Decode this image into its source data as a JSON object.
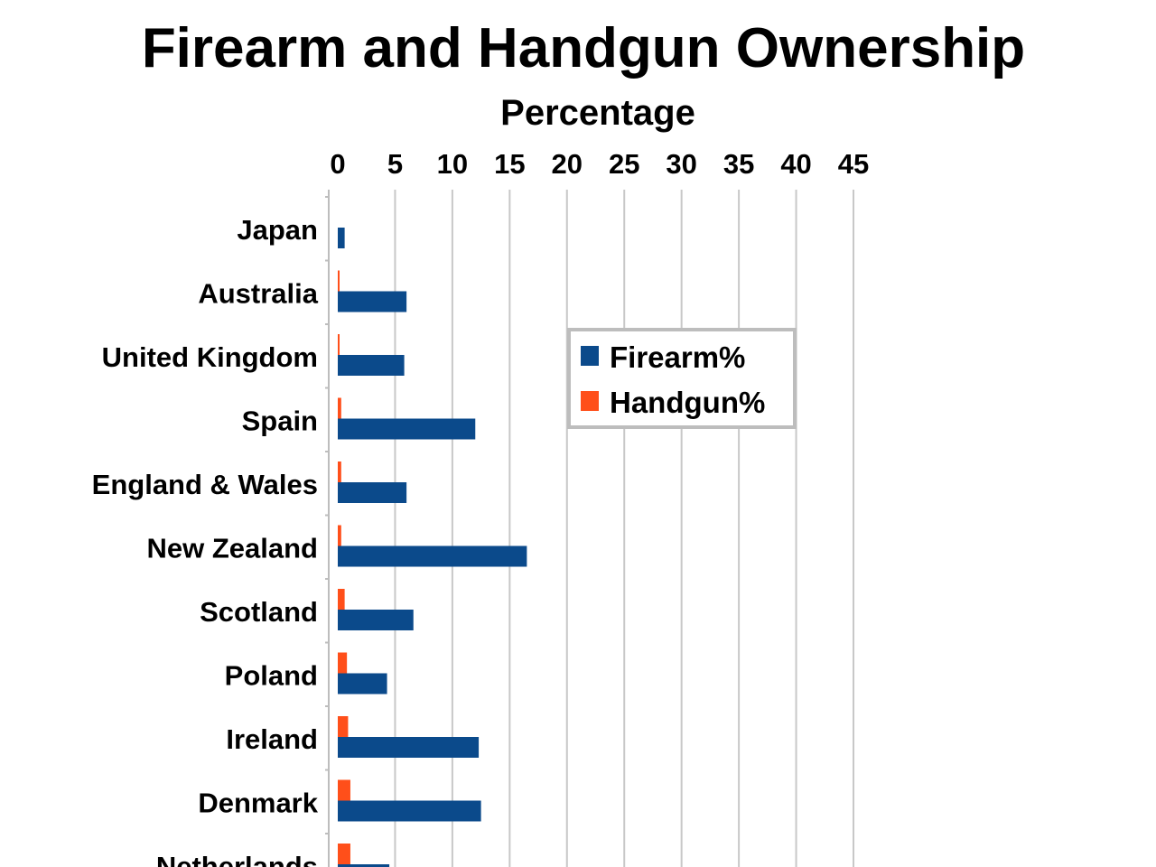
{
  "chart_data": {
    "type": "bar",
    "orientation": "horizontal",
    "title": "Firearm and Handgun Ownership",
    "xlabel": "Percentage",
    "ylabel": "",
    "xlim": [
      0,
      45
    ],
    "x_ticks": [
      0,
      5,
      10,
      15,
      20,
      25,
      30,
      35,
      40,
      45
    ],
    "grid": true,
    "legend_position": "right",
    "categories": [
      "Japan",
      "Australia",
      "United Kingdom",
      "Spain",
      "England & Wales",
      "New Zealand",
      "Scotland",
      "Poland",
      "Ireland",
      "Denmark",
      "Netherlands"
    ],
    "series": [
      {
        "name": "Firearm%",
        "color": "#0b4a8b",
        "values": [
          0.6,
          6.0,
          5.8,
          12.0,
          6.0,
          16.5,
          6.6,
          4.3,
          12.3,
          12.5,
          4.5
        ]
      },
      {
        "name": "Handgun%",
        "color": "#ff4f1a",
        "values": [
          0.0,
          0.1,
          0.1,
          0.3,
          0.3,
          0.3,
          0.6,
          0.8,
          0.9,
          1.1,
          1.1
        ]
      }
    ]
  }
}
